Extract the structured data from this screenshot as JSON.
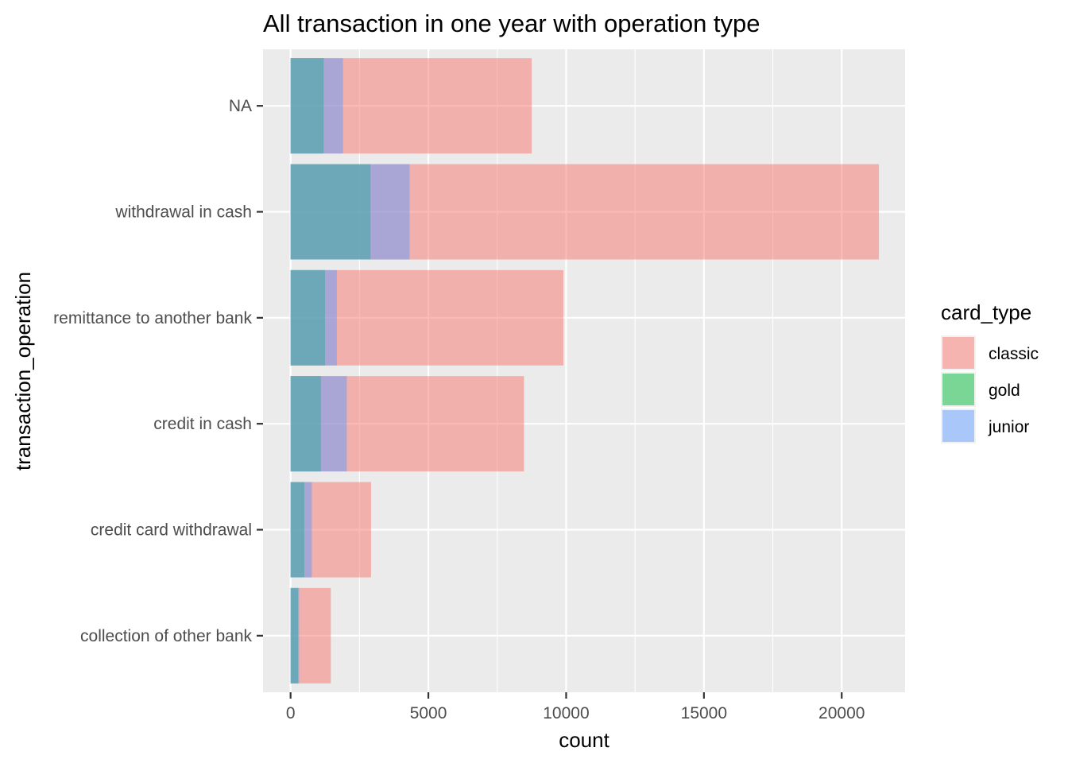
{
  "chart_data": {
    "type": "bar",
    "orientation": "horizontal",
    "stacked": false,
    "overlapping": true,
    "title": "All transaction in one year with operation type",
    "xlabel": "count",
    "ylabel": "transaction_operation",
    "xlim": [
      -1000,
      22300
    ],
    "xticks": [
      0,
      5000,
      10000,
      15000,
      20000
    ],
    "tick_labels_x": [
      "0",
      "5000",
      "10000",
      "15000",
      "20000"
    ],
    "grid": true,
    "legend_position": "right",
    "legend_title": "card_type",
    "categories": [
      "NA",
      "withdrawal in cash",
      "remittance to another bank",
      "credit in cash",
      "credit card withdrawal",
      "collection of other bank"
    ],
    "series": [
      {
        "name": "classic",
        "color": "#F8766D",
        "values": [
          8750,
          21350,
          9900,
          8470,
          2920,
          1460
        ]
      },
      {
        "name": "gold",
        "color": "#00BA38",
        "values": [
          1200,
          2900,
          1250,
          1100,
          500,
          270
        ]
      },
      {
        "name": "junior",
        "color": "#619CFF",
        "values": [
          1900,
          4320,
          1680,
          2040,
          770,
          310
        ]
      }
    ]
  }
}
